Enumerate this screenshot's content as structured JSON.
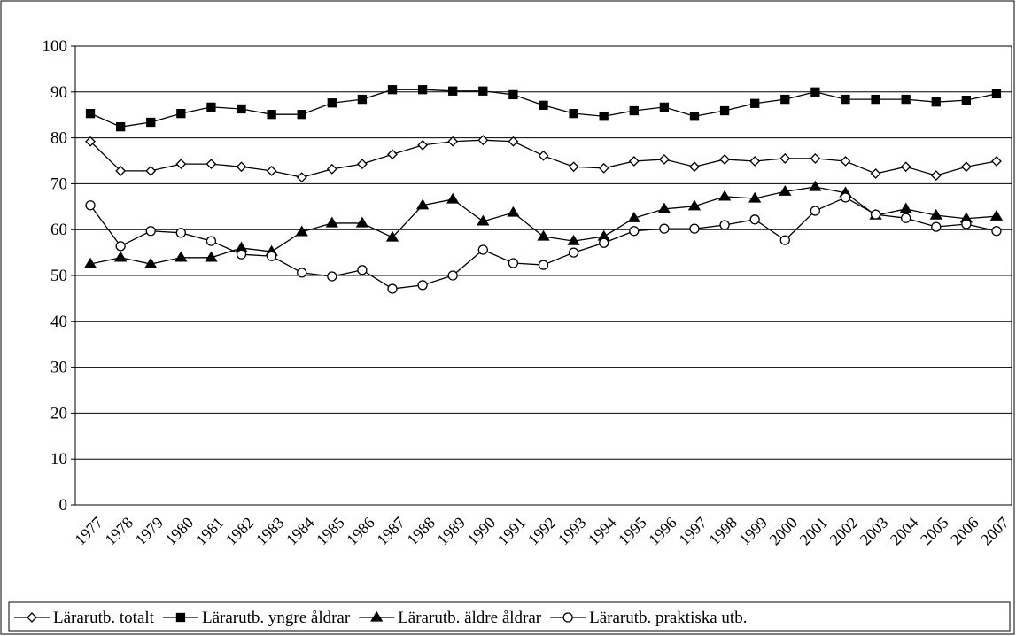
{
  "chart_data": {
    "type": "line",
    "categories": [
      "1977",
      "1978",
      "1979",
      "1980",
      "1981",
      "1982",
      "1983",
      "1984",
      "1985",
      "1986",
      "1987",
      "1988",
      "1989",
      "1990",
      "1991",
      "1992",
      "1993",
      "1994",
      "1995",
      "1996",
      "1997",
      "1998",
      "1999",
      "2000",
      "2001",
      "2002",
      "2003",
      "2004",
      "2005",
      "2006",
      "2007"
    ],
    "series": [
      {
        "name": "Lärarutb. totalt",
        "color": "#000000",
        "marker": "diamond",
        "marker_fill": "#ffffff",
        "values": [
          79.2,
          72.8,
          72.8,
          74.3,
          74.3,
          73.7,
          72.8,
          71.4,
          73.2,
          74.3,
          76.4,
          78.4,
          79.2,
          79.5,
          79.2,
          76.1,
          73.7,
          73.4,
          74.9,
          75.3,
          73.7,
          75.3,
          74.9,
          75.5,
          75.5,
          74.9,
          72.2,
          73.7,
          71.8,
          73.7,
          74.9
        ]
      },
      {
        "name": "Lärarutb. yngre åldrar",
        "color": "#000000",
        "marker": "square",
        "marker_fill": "#000000",
        "values": [
          85.3,
          82.4,
          83.4,
          85.3,
          86.7,
          86.3,
          85.1,
          85.1,
          87.6,
          88.4,
          90.5,
          90.5,
          90.2,
          90.2,
          89.4,
          87.1,
          85.3,
          84.7,
          85.9,
          86.7,
          84.7,
          85.9,
          87.5,
          88.4,
          90.0,
          88.4,
          88.4,
          88.4,
          87.8,
          88.2,
          89.6
        ]
      },
      {
        "name": "Lärarutb. äldre åldrar",
        "color": "#000000",
        "marker": "triangle",
        "marker_fill": "#000000",
        "values": [
          52.5,
          53.9,
          52.5,
          53.9,
          53.9,
          56.0,
          55.2,
          59.5,
          61.4,
          61.4,
          58.3,
          65.3,
          66.6,
          61.8,
          63.7,
          58.5,
          57.5,
          58.5,
          62.5,
          64.5,
          65.1,
          67.2,
          66.8,
          68.3,
          69.3,
          68.0,
          63.1,
          64.5,
          63.1,
          62.4,
          62.9
        ]
      },
      {
        "name": "Lärarutb. praktiska utb.",
        "color": "#000000",
        "marker": "circle",
        "marker_fill": "#ffffff",
        "values": [
          65.3,
          56.4,
          59.7,
          59.3,
          57.5,
          54.6,
          54.2,
          50.6,
          49.8,
          51.2,
          47.1,
          47.9,
          50.0,
          55.6,
          52.7,
          52.3,
          55.0,
          57.1,
          59.7,
          60.2,
          60.2,
          61.0,
          62.2,
          57.7,
          64.1,
          67.0,
          63.3,
          62.5,
          60.6,
          61.2,
          59.7
        ]
      }
    ],
    "ylim": [
      0,
      100
    ],
    "yticks": [
      0,
      10,
      20,
      30,
      40,
      50,
      60,
      70,
      80,
      90,
      100
    ],
    "grid": true,
    "legend": "bottom"
  }
}
